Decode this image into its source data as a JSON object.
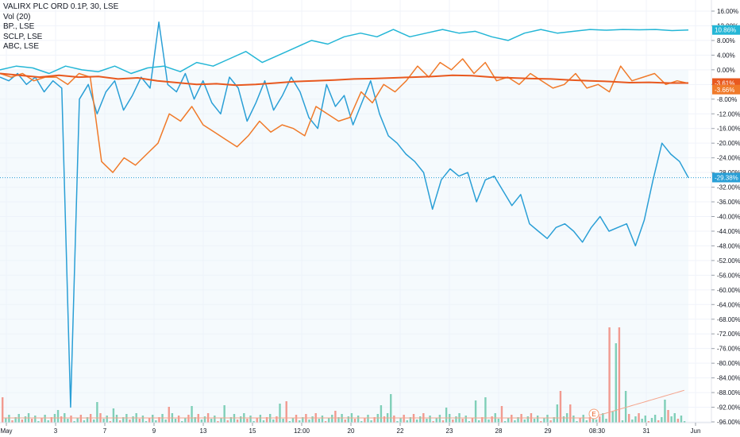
{
  "legend": {
    "main": "VALIRX PLC ORD 0.1P, 30, LSE",
    "vol": "Vol (20)",
    "s1": "BP., LSE",
    "s2": "SCLP, LSE",
    "s3": "ABC, LSE"
  },
  "colors": {
    "main": "#2a9fd6",
    "bp": "#24b6d6",
    "sclp": "#f07a2a",
    "abc": "#e8591f",
    "vol_up": "#7fcfb8",
    "vol_down": "#f19a90",
    "grid": "#f0f3fa",
    "axis_line": "#9aa0aa"
  },
  "chart_data": {
    "type": "line",
    "y_unit": "%",
    "ylim": [
      -96,
      16
    ],
    "y_ticks": [
      "16.00%",
      "12.00%",
      "8.00%",
      "4.00%",
      "0.00%",
      "-4.00%",
      "-8.00%",
      "-12.00%",
      "-16.00%",
      "-20.00%",
      "-24.00%",
      "-28.00%",
      "-32.00%",
      "-36.00%",
      "-40.00%",
      "-44.00%",
      "-48.00%",
      "-52.00%",
      "-56.00%",
      "-60.00%",
      "-64.00%",
      "-68.00%",
      "-72.00%",
      "-76.00%",
      "-80.00%",
      "-84.00%",
      "-88.00%",
      "-92.00%",
      "-96.00%"
    ],
    "x_ticks": [
      "May",
      "3",
      "7",
      "9",
      "13",
      "15",
      "12:00",
      "20",
      "22",
      "23",
      "28",
      "29",
      "08:30",
      "31",
      "Jun"
    ],
    "price_tags": [
      {
        "label": "10.86%",
        "value": 10.86,
        "series": "bp"
      },
      {
        "label": "-3.61%",
        "value": -3.61,
        "series": "abc"
      },
      {
        "label": "-3.66%",
        "value": -3.66,
        "series": "sclp"
      },
      {
        "label": "-29.38%",
        "value": -29.38,
        "series": "main"
      }
    ],
    "series": [
      {
        "key": "main",
        "values": [
          -2,
          -3,
          -1,
          -4,
          -2,
          -6,
          -3,
          -5,
          -92,
          -8,
          -4,
          -12,
          -6,
          -3,
          -11,
          -7,
          -2,
          -5,
          13,
          -4,
          -6,
          -1,
          -8,
          -3,
          -9,
          -12,
          -2,
          -5,
          -14,
          -9,
          -3,
          -11,
          -7,
          -2,
          -6,
          -13,
          -16,
          -4,
          -10,
          -7,
          -15,
          -9,
          -3,
          -12,
          -18,
          -20,
          -23,
          -25,
          -28,
          -38,
          -30,
          -27,
          -29,
          -28,
          -36,
          -30,
          -29,
          -33,
          -37,
          -34,
          -42,
          -44,
          -46,
          -43,
          -42,
          -44,
          -47,
          -43,
          -40,
          -44,
          -43,
          -42,
          -48,
          -41,
          -30,
          -20,
          -23,
          -25,
          -29.4
        ]
      },
      {
        "key": "bp",
        "values": [
          0,
          1,
          0.5,
          -1,
          1,
          0,
          -0.5,
          1,
          -1,
          0.5,
          1,
          -0.5,
          2,
          1,
          3,
          5,
          2,
          4,
          6,
          8,
          7,
          9,
          10,
          9,
          11,
          9,
          10,
          11,
          10,
          10.5,
          9,
          8,
          10,
          11,
          10,
          10.5,
          11,
          10.8,
          11,
          10.9,
          11,
          10.7,
          10.86
        ]
      },
      {
        "key": "sclp",
        "values": [
          -1,
          -2,
          -1,
          -3,
          -2,
          -2,
          -4,
          -1,
          -2,
          -25,
          -28,
          -24,
          -26,
          -23,
          -20,
          -12,
          -14,
          -10,
          -15,
          -17,
          -19,
          -21,
          -18,
          -14,
          -17,
          -15,
          -16,
          -18,
          -10,
          -12,
          -14,
          -13,
          -6,
          -9,
          -4,
          -6,
          -3,
          1,
          -2,
          2,
          0,
          3,
          -1,
          2,
          -3,
          -2,
          -4,
          -1,
          -3,
          -5,
          -4,
          -1,
          -5,
          -4,
          -6,
          1,
          -3,
          -2,
          -1,
          -4,
          -3,
          -3.66
        ]
      },
      {
        "key": "abc",
        "values": [
          -1,
          -1.5,
          -2,
          -1.5,
          -2,
          -1.8,
          -2.5,
          -2.2,
          -3,
          -3.5,
          -4,
          -3.8,
          -4.2,
          -4,
          -3.6,
          -3.2,
          -3,
          -2.8,
          -2.5,
          -2.4,
          -2.2,
          -2,
          -1.8,
          -1.5,
          -1.6,
          -2,
          -2.2,
          -2.4,
          -2.5,
          -2.8,
          -3,
          -3.2,
          -3.5,
          -3.4,
          -3.6,
          -3.61
        ]
      }
    ]
  }
}
